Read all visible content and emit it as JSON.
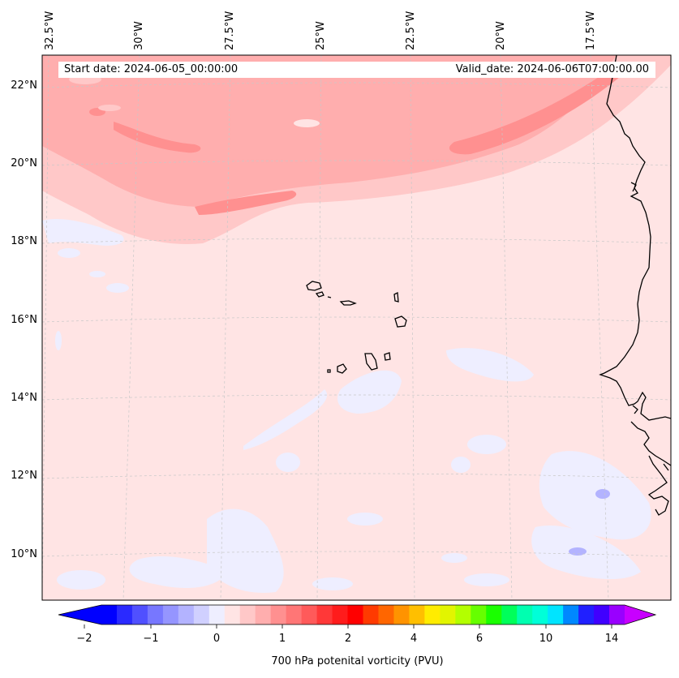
{
  "map": {
    "region": "Cabo Verde and West African coast",
    "longitude_labels": [
      "32.5°W",
      "30°W",
      "27.5°W",
      "25°W",
      "22.5°W",
      "20°W",
      "17.5°W"
    ],
    "latitude_labels": [
      "22°N",
      "20°N",
      "18°N",
      "16°N",
      "14°N",
      "12°N",
      "10°N"
    ],
    "start_date_label": "Start date: 2024-06-05_00:00:00",
    "valid_date_label": "Valid_date: 2024-06-06T07:00:00.00"
  },
  "colorbar": {
    "ticks": [
      "−2",
      "−1",
      "0",
      "1",
      "2",
      "4",
      "6",
      "10",
      "14"
    ],
    "label": "700 hPa potenital vorticity (PVU)",
    "colors": [
      "#0000ff",
      "#2a2aff",
      "#5050ff",
      "#7777ff",
      "#9595ff",
      "#b3b3ff",
      "#d0d0ff",
      "#eeeeff",
      "#ffe4e4",
      "#ffc8c8",
      "#ffaeae",
      "#ff9090",
      "#ff7676",
      "#ff5a5a",
      "#ff3838",
      "#ff1c1c",
      "#ff0000",
      "#ff3a00",
      "#ff6600",
      "#ff9300",
      "#ffbf00",
      "#ffec00",
      "#e2f500",
      "#b3ff00",
      "#66ff00",
      "#1aff00",
      "#00ff5a",
      "#00ffb0",
      "#00ffd8",
      "#00e4ff",
      "#0088ff",
      "#2020ff",
      "#4000ff",
      "#9900ff"
    ],
    "under_color": "#0000ff",
    "over_color": "#c800ff"
  },
  "style": {
    "background_fill": "#ffe4e4",
    "band_light": "#ffc8c8",
    "band_mid": "#ffaeae",
    "band_dark": "#ff9090",
    "negative_patch": "#eeeeff",
    "negative_patch_dark": "#b3b3ff",
    "coast": "#000000"
  }
}
